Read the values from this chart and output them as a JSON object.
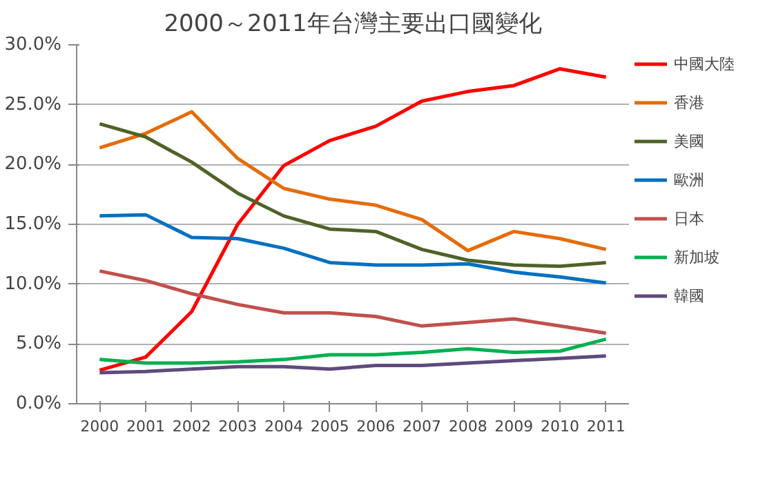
{
  "chart_data": {
    "type": "line",
    "title": "2000～2011年台灣主要出口國變化",
    "categories": [
      "2000",
      "2001",
      "2002",
      "2003",
      "2004",
      "2005",
      "2006",
      "2007",
      "2008",
      "2009",
      "2010",
      "2011"
    ],
    "series": [
      {
        "name": "中國大陸",
        "color": "#ff0000",
        "values": [
          2.8,
          3.9,
          7.7,
          15.0,
          19.9,
          22.0,
          23.2,
          25.3,
          26.1,
          26.6,
          28.0,
          27.3
        ]
      },
      {
        "name": "香港",
        "color": "#e46c0a",
        "values": [
          21.4,
          22.6,
          24.4,
          20.5,
          18.0,
          17.1,
          16.6,
          15.4,
          12.8,
          14.4,
          13.8,
          12.9
        ]
      },
      {
        "name": "美國",
        "color": "#4f6228",
        "values": [
          23.4,
          22.3,
          20.2,
          17.6,
          15.7,
          14.6,
          14.4,
          12.9,
          12.0,
          11.6,
          11.5,
          11.8
        ]
      },
      {
        "name": "歐洲",
        "color": "#0070c0",
        "values": [
          15.7,
          15.8,
          13.9,
          13.8,
          13.0,
          11.8,
          11.6,
          11.6,
          11.7,
          11.0,
          10.6,
          10.1
        ]
      },
      {
        "name": "日本",
        "color": "#c0504d",
        "values": [
          11.1,
          10.3,
          9.2,
          8.3,
          7.6,
          7.6,
          7.3,
          6.5,
          6.8,
          7.1,
          6.5,
          5.9
        ]
      },
      {
        "name": "新加坡",
        "color": "#00b050",
        "values": [
          3.7,
          3.4,
          3.4,
          3.5,
          3.7,
          4.1,
          4.1,
          4.3,
          4.6,
          4.3,
          4.4,
          5.4
        ]
      },
      {
        "name": "韓國",
        "color": "#604a7b",
        "values": [
          2.6,
          2.7,
          2.9,
          3.1,
          3.1,
          2.9,
          3.2,
          3.2,
          3.4,
          3.6,
          3.8,
          4.0
        ]
      }
    ],
    "ylim": [
      0,
      30
    ],
    "yticks": [
      {
        "value": 0,
        "label": "0.0%"
      },
      {
        "value": 5,
        "label": "5.0%"
      },
      {
        "value": 10,
        "label": "10.0%"
      },
      {
        "value": 15,
        "label": "15.0%"
      },
      {
        "value": 20,
        "label": "20.0%"
      },
      {
        "value": 25,
        "label": "25.0%"
      },
      {
        "value": 30,
        "label": "30.0%"
      }
    ],
    "grid": "y",
    "legend": "right",
    "marker": "none",
    "line_style": "solid"
  }
}
